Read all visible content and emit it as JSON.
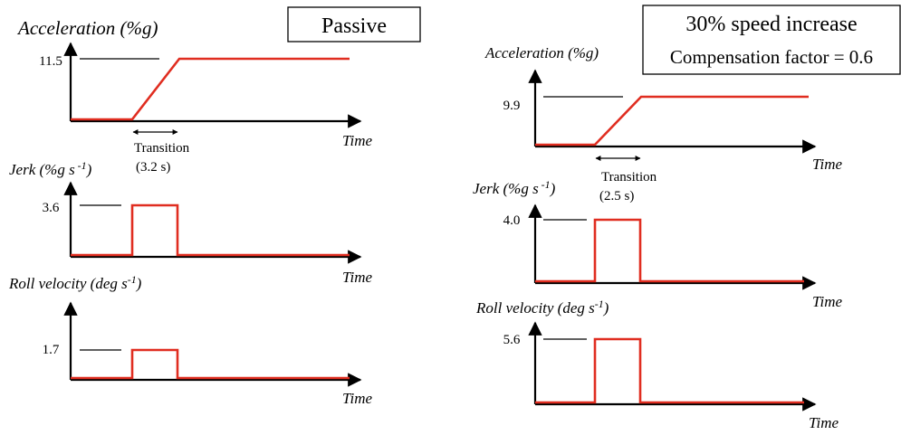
{
  "panels": [
    {
      "title": "Passive",
      "subtitle": "",
      "transition": {
        "label": "Transition",
        "value": "(3.2 s)"
      }
    },
    {
      "title": "30% speed increase",
      "subtitle": "Compensation factor = 0.6",
      "transition": {
        "label": "Transition",
        "value": "(2.5 s)"
      }
    }
  ],
  "colors": {
    "signal": "#e02d20",
    "axis": "#000000",
    "reference": "#000000"
  },
  "chart_data": [
    {
      "type": "line",
      "panel": "Passive",
      "ylabel": "Acceleration (%g)",
      "xlabel": "Time",
      "peak": 11.5,
      "peak_label": "11.5",
      "shape": "ramp"
    },
    {
      "type": "line",
      "panel": "Passive",
      "ylabel": "Jerk (%g s -1)",
      "xlabel": "Time",
      "peak": 3.6,
      "peak_label": "3.6",
      "shape": "pulse"
    },
    {
      "type": "line",
      "panel": "Passive",
      "ylabel": "Roll velocity (deg s-1)",
      "xlabel": "Time",
      "peak": 1.7,
      "peak_label": "1.7",
      "shape": "pulse"
    },
    {
      "type": "line",
      "panel": "30% speed increase",
      "ylabel": "Acceleration (%g)",
      "xlabel": "Time",
      "peak": 9.9,
      "peak_label": "9.9",
      "shape": "ramp"
    },
    {
      "type": "line",
      "panel": "30% speed increase",
      "ylabel": "Jerk (%g s -1)",
      "xlabel": "Time",
      "peak": 4.0,
      "peak_label": "4.0",
      "shape": "pulse"
    },
    {
      "type": "line",
      "panel": "30% speed increase",
      "ylabel": "Roll velocity (deg s-1)",
      "xlabel": "Time",
      "peak": 5.6,
      "peak_label": "5.6",
      "shape": "pulse"
    }
  ]
}
